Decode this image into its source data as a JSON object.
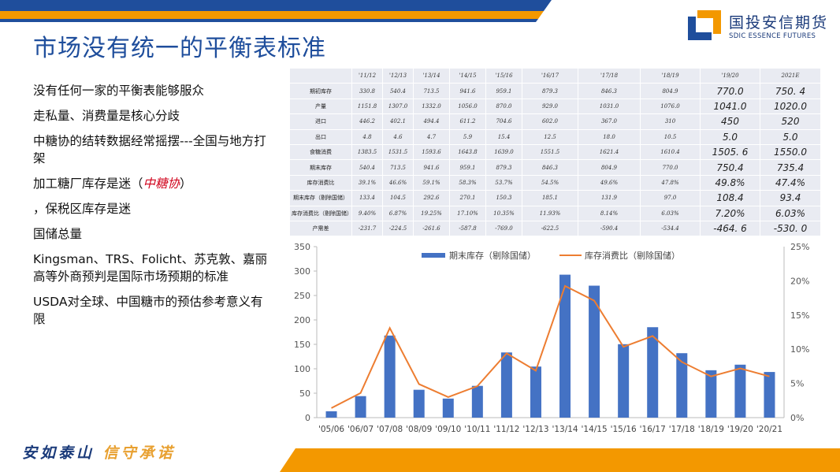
{
  "title": "市场没有统一的平衡表标准",
  "bullets": [
    {
      "text": "没有任何一家的平衡表能够服众"
    },
    {
      "text": "走私量、消费量是核心分歧"
    },
    {
      "text": "中糖协的结转数据经常摇摆---全国与地方打架"
    },
    {
      "text": "加工糖厂库存是迷（",
      "red": "中糖协",
      "tail": "）"
    },
    {
      "text": "，保税区库存是迷"
    },
    {
      "text": "国储总量"
    },
    {
      "text": "Kingsman、TRS、Folicht、苏克敦、嘉丽高等外商预判是国际市场预期的标准"
    },
    {
      "text": "USDA对全球、中国糖市的预估参考意义有限"
    }
  ],
  "logo": {
    "name_cn": "国投安信期货",
    "name_en": "SDIC ESSENCE FUTURES"
  },
  "slogan": {
    "part1": "安如泰山",
    "part2": "信守承诺"
  },
  "colors": {
    "blue": "#1f4e9c",
    "orange": "#f39800",
    "bar": "#4472c4",
    "line": "#ed7d31"
  },
  "table": {
    "headers": [
      "",
      "'11/12",
      "'12/13",
      "'13/14",
      "'14/15",
      "'15/16",
      "'16/17",
      "'17/18",
      "'18/19",
      "'19/20",
      "2021E"
    ],
    "rows": [
      [
        "期初库存",
        "330.8",
        "540.4",
        "713.5",
        "941.6",
        "959.1",
        "879.3",
        "846.3",
        "804.9",
        "770.0",
        "750. 4"
      ],
      [
        "产量",
        "1151.8",
        "1307.0",
        "1332.0",
        "1056.0",
        "870.0",
        "929.0",
        "1031.0",
        "1076.0",
        "1041.0",
        "1020.0"
      ],
      [
        "进口",
        "446.2",
        "402.1",
        "494.4",
        "611.2",
        "704.6",
        "602.0",
        "367.0",
        "310",
        "450",
        "520"
      ],
      [
        "出口",
        "4.8",
        "4.6",
        "4.7",
        "5.9",
        "15.4",
        "12.5",
        "18.0",
        "10.5",
        "5.0",
        "5.0"
      ],
      [
        "食糖消费",
        "1383.5",
        "1531.5",
        "1593.6",
        "1643.8",
        "1639.0",
        "1551.5",
        "1621.4",
        "1610.4",
        "1505. 6",
        "1550.0"
      ],
      [
        "期末库存",
        "540.4",
        "713.5",
        "941.6",
        "959.1",
        "879.3",
        "846.3",
        "804.9",
        "770.0",
        "750.4",
        "735.4"
      ],
      [
        "库存消费比",
        "39.1%",
        "46.6%",
        "59.1%",
        "58.3%",
        "53.7%",
        "54.5%",
        "49.6%",
        "47.8%",
        "49.8%",
        "47.4%"
      ],
      [
        "期末库存（剔除国储）",
        "133.4",
        "104.5",
        "292.6",
        "270.1",
        "150.3",
        "185.1",
        "131.9",
        "97.0",
        "108.4",
        "93.4"
      ],
      [
        "库存消费比（剔除国储）",
        "9.40%",
        "6.87%",
        "19.25%",
        "17.10%",
        "10.35%",
        "11.93%",
        "8.14%",
        "6.03%",
        "7.20%",
        "6.03%"
      ],
      [
        "产需差",
        "-231.7",
        "-224.5",
        "-261.6",
        "-587.8",
        "-769.0",
        "-622.5",
        "-590.4",
        "-534.4",
        "-464. 6",
        "-530. 0"
      ]
    ]
  },
  "chart_data": {
    "type": "bar",
    "categories": [
      "'05/06",
      "'06/07",
      "'07/08",
      "'08/09",
      "'09/10",
      "'10/11",
      "'11/12",
      "'12/13",
      "'13/14",
      "'14/15",
      "'15/16",
      "'16/17",
      "'17/18",
      "'18/19",
      "'19/20",
      "'20/21"
    ],
    "series": [
      {
        "name": "期末库存（剔除国储）",
        "type": "bar",
        "axis": "left",
        "values": [
          13,
          44,
          168,
          57,
          39,
          65,
          133.4,
          104.5,
          292.6,
          270.1,
          150.3,
          185.1,
          131.9,
          97.0,
          108.4,
          93.4
        ]
      },
      {
        "name": "库存消费比（剔除国储）",
        "type": "line",
        "axis": "right",
        "values": [
          1.4,
          3.6,
          13.1,
          4.9,
          3.0,
          4.6,
          9.4,
          6.87,
          19.25,
          17.1,
          10.35,
          11.93,
          8.14,
          6.03,
          7.2,
          6.03
        ]
      }
    ],
    "ylim": [
      0,
      350
    ],
    "yticks": [
      "0",
      "50",
      "100",
      "150",
      "200",
      "250",
      "300",
      "350"
    ],
    "y2lim": [
      0,
      25
    ],
    "y2ticks": [
      "0%",
      "5%",
      "10%",
      "15%",
      "20%",
      "25%"
    ],
    "legend": "top"
  }
}
